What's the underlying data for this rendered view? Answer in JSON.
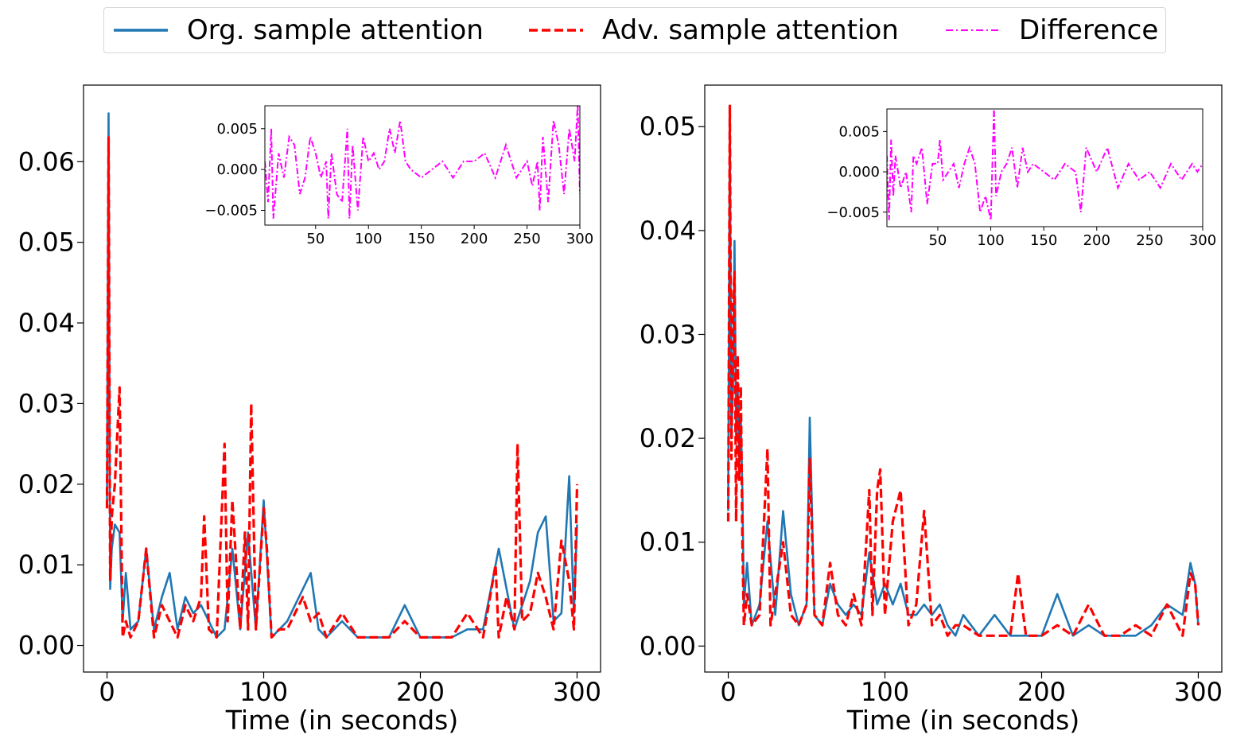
{
  "legend": {
    "org_label": "Org. sample attention",
    "adv_label": "Adv. sample attention",
    "diff_label": "Difference"
  },
  "colors": {
    "org": "#1f77b4",
    "adv": "#ff0000",
    "diff": "#ff00ff"
  },
  "chart_data": [
    {
      "type": "line",
      "xlabel": "Time (in seconds)",
      "ylabel": "",
      "xlim": [
        -15,
        315
      ],
      "ylim": [
        -0.0033,
        0.0695
      ],
      "xticks": [
        0,
        100,
        200,
        300
      ],
      "xtick_labels": [
        "0",
        "100",
        "200",
        "300"
      ],
      "yticks": [
        0.0,
        0.01,
        0.02,
        0.03,
        0.04,
        0.05,
        0.06
      ],
      "ytick_labels": [
        "0.00",
        "0.01",
        "0.02",
        "0.03",
        "0.04",
        "0.05",
        "0.06"
      ],
      "series": [
        {
          "name": "Org. sample attention",
          "style": "solid",
          "x": [
            0,
            1,
            2,
            3,
            5,
            8,
            10,
            12,
            15,
            20,
            25,
            30,
            35,
            40,
            45,
            50,
            55,
            60,
            65,
            70,
            75,
            80,
            85,
            90,
            95,
            100,
            105,
            110,
            115,
            120,
            125,
            130,
            135,
            140,
            150,
            160,
            170,
            180,
            190,
            200,
            210,
            220,
            230,
            240,
            250,
            260,
            270,
            275,
            280,
            285,
            290,
            295,
            298,
            300
          ],
          "y": [
            0.018,
            0.066,
            0.007,
            0.012,
            0.015,
            0.014,
            0.003,
            0.009,
            0.002,
            0.003,
            0.012,
            0.002,
            0.006,
            0.009,
            0.002,
            0.006,
            0.004,
            0.005,
            0.003,
            0.001,
            0.002,
            0.012,
            0.002,
            0.014,
            0.002,
            0.018,
            0.001,
            0.002,
            0.003,
            0.005,
            0.007,
            0.009,
            0.002,
            0.001,
            0.003,
            0.001,
            0.001,
            0.001,
            0.005,
            0.001,
            0.001,
            0.001,
            0.002,
            0.002,
            0.012,
            0.002,
            0.008,
            0.014,
            0.016,
            0.003,
            0.004,
            0.021,
            0.004,
            0.015
          ]
        },
        {
          "name": "Adv. sample attention",
          "style": "dashed",
          "x": [
            0,
            1,
            2,
            3,
            5,
            8,
            10,
            12,
            15,
            20,
            25,
            30,
            35,
            40,
            45,
            50,
            55,
            60,
            62,
            65,
            70,
            75,
            77,
            80,
            85,
            88,
            90,
            92,
            95,
            100,
            102,
            105,
            110,
            115,
            120,
            125,
            130,
            135,
            140,
            150,
            160,
            170,
            180,
            190,
            200,
            210,
            220,
            230,
            240,
            248,
            250,
            255,
            260,
            262,
            265,
            270,
            275,
            280,
            285,
            290,
            295,
            298,
            300
          ],
          "y": [
            0.017,
            0.063,
            0.008,
            0.016,
            0.02,
            0.032,
            0.001,
            0.003,
            0.001,
            0.003,
            0.012,
            0.001,
            0.005,
            0.003,
            0.001,
            0.005,
            0.003,
            0.006,
            0.016,
            0.002,
            0.001,
            0.025,
            0.003,
            0.018,
            0.002,
            0.014,
            0.002,
            0.03,
            0.002,
            0.017,
            0.012,
            0.001,
            0.002,
            0.002,
            0.004,
            0.006,
            0.003,
            0.004,
            0.001,
            0.004,
            0.001,
            0.001,
            0.001,
            0.003,
            0.001,
            0.001,
            0.001,
            0.004,
            0.001,
            0.01,
            0.001,
            0.006,
            0.002,
            0.025,
            0.003,
            0.004,
            0.009,
            0.006,
            0.002,
            0.013,
            0.008,
            0.002,
            0.02
          ]
        }
      ],
      "inset": {
        "series_name": "Difference",
        "style": "dashdot",
        "xlim": [
          2,
          300
        ],
        "ylim": [
          -0.0068,
          0.0078
        ],
        "xticks": [
          50,
          100,
          150,
          200,
          250,
          300
        ],
        "xtick_labels": [
          "50",
          "100",
          "150",
          "200",
          "250",
          "300"
        ],
        "yticks": [
          -0.005,
          0.0,
          0.005
        ],
        "ytick_labels": [
          "−0.005",
          "0.000",
          "0.005"
        ],
        "x": [
          2,
          5,
          8,
          10,
          15,
          20,
          25,
          30,
          35,
          40,
          45,
          50,
          55,
          60,
          62,
          65,
          70,
          75,
          80,
          82,
          85,
          90,
          95,
          100,
          105,
          110,
          115,
          120,
          125,
          130,
          135,
          140,
          150,
          160,
          170,
          180,
          190,
          200,
          210,
          220,
          230,
          240,
          250,
          255,
          260,
          262,
          265,
          270,
          275,
          280,
          285,
          290,
          295,
          298,
          300
        ],
        "y": [
          0.001,
          -0.004,
          0.005,
          -0.006,
          0.002,
          -0.001,
          0.004,
          0.003,
          -0.003,
          -0.001,
          0.004,
          0.002,
          -0.001,
          0.001,
          -0.006,
          0.002,
          -0.003,
          -0.004,
          0.005,
          -0.006,
          0.003,
          -0.005,
          0.004,
          0.001,
          0.002,
          0.0,
          0.001,
          0.005,
          0.002,
          0.006,
          0.001,
          0.0,
          -0.001,
          0.0,
          0.001,
          -0.001,
          0.001,
          0.001,
          0.002,
          -0.001,
          0.003,
          -0.001,
          0.001,
          -0.002,
          0.001,
          -0.005,
          0.004,
          -0.004,
          0.006,
          0.003,
          -0.003,
          0.005,
          0.001,
          0.008,
          -0.003
        ]
      }
    },
    {
      "type": "line",
      "xlabel": "Time (in seconds)",
      "ylabel": "",
      "xlim": [
        -15,
        315
      ],
      "ylim": [
        -0.0025,
        0.054
      ],
      "xticks": [
        0,
        100,
        200,
        300
      ],
      "xtick_labels": [
        "0",
        "100",
        "200",
        "300"
      ],
      "yticks": [
        0.0,
        0.01,
        0.02,
        0.03,
        0.04,
        0.05
      ],
      "ytick_labels": [
        "0.00",
        "0.01",
        "0.02",
        "0.03",
        "0.04",
        "0.05"
      ],
      "series": [
        {
          "name": "Org. sample attention",
          "style": "solid",
          "x": [
            0,
            1,
            2,
            3,
            4,
            5,
            6,
            7,
            8,
            9,
            10,
            12,
            15,
            20,
            25,
            30,
            35,
            40,
            45,
            50,
            52,
            55,
            60,
            65,
            70,
            75,
            80,
            85,
            90,
            95,
            100,
            105,
            110,
            115,
            120,
            125,
            130,
            135,
            140,
            145,
            150,
            160,
            170,
            180,
            190,
            200,
            210,
            220,
            230,
            240,
            250,
            260,
            270,
            280,
            290,
            295,
            298,
            300
          ],
          "y": [
            0.013,
            0.05,
            0.02,
            0.025,
            0.039,
            0.02,
            0.025,
            0.018,
            0.022,
            0.015,
            0.004,
            0.008,
            0.002,
            0.004,
            0.012,
            0.003,
            0.013,
            0.005,
            0.002,
            0.004,
            0.022,
            0.003,
            0.002,
            0.006,
            0.004,
            0.003,
            0.004,
            0.003,
            0.009,
            0.004,
            0.006,
            0.004,
            0.006,
            0.003,
            0.003,
            0.004,
            0.003,
            0.004,
            0.002,
            0.001,
            0.003,
            0.001,
            0.003,
            0.001,
            0.001,
            0.001,
            0.005,
            0.001,
            0.002,
            0.001,
            0.001,
            0.001,
            0.002,
            0.004,
            0.003,
            0.008,
            0.006,
            0.002
          ]
        },
        {
          "name": "Adv. sample attention",
          "style": "dashed",
          "x": [
            0,
            1,
            2,
            3,
            4,
            5,
            6,
            7,
            8,
            9,
            10,
            12,
            15,
            20,
            25,
            27,
            30,
            35,
            40,
            45,
            50,
            52,
            55,
            60,
            65,
            70,
            75,
            80,
            85,
            90,
            92,
            95,
            97,
            100,
            105,
            110,
            115,
            120,
            125,
            130,
            135,
            140,
            145,
            150,
            160,
            170,
            180,
            185,
            190,
            200,
            210,
            220,
            230,
            240,
            250,
            260,
            270,
            280,
            290,
            295,
            298,
            300
          ],
          "y": [
            0.012,
            0.052,
            0.018,
            0.033,
            0.036,
            0.012,
            0.028,
            0.016,
            0.025,
            0.01,
            0.002,
            0.005,
            0.002,
            0.003,
            0.019,
            0.002,
            0.005,
            0.01,
            0.003,
            0.002,
            0.004,
            0.018,
            0.003,
            0.002,
            0.008,
            0.003,
            0.002,
            0.005,
            0.002,
            0.015,
            0.003,
            0.015,
            0.017,
            0.003,
            0.012,
            0.015,
            0.002,
            0.004,
            0.013,
            0.002,
            0.003,
            0.001,
            0.002,
            0.002,
            0.001,
            0.001,
            0.001,
            0.007,
            0.001,
            0.001,
            0.002,
            0.001,
            0.004,
            0.001,
            0.001,
            0.002,
            0.001,
            0.004,
            0.001,
            0.007,
            0.006,
            0.002
          ]
        }
      ],
      "inset": {
        "series_name": "Difference",
        "style": "dashdot",
        "xlim": [
          2,
          300
        ],
        "ylim": [
          -0.0068,
          0.0078
        ],
        "xticks": [
          50,
          100,
          150,
          200,
          250,
          300
        ],
        "xtick_labels": [
          "50",
          "100",
          "150",
          "200",
          "250",
          "300"
        ],
        "yticks": [
          -0.005,
          0.0,
          0.005
        ],
        "ytick_labels": [
          "−0.005",
          "0.000",
          "0.005"
        ],
        "x": [
          2,
          4,
          6,
          8,
          10,
          15,
          20,
          25,
          27,
          30,
          35,
          40,
          45,
          50,
          52,
          55,
          60,
          65,
          70,
          75,
          80,
          85,
          90,
          95,
          100,
          103,
          105,
          110,
          115,
          120,
          125,
          130,
          135,
          140,
          150,
          160,
          170,
          180,
          185,
          190,
          200,
          210,
          220,
          230,
          240,
          250,
          260,
          270,
          280,
          290,
          295,
          300
        ],
        "y": [
          0.002,
          -0.006,
          0.004,
          -0.003,
          0.002,
          -0.002,
          0.0,
          -0.005,
          0.002,
          0.001,
          0.003,
          -0.004,
          0.001,
          0.001,
          0.004,
          -0.001,
          0.0,
          0.001,
          -0.002,
          0.001,
          0.003,
          0.001,
          -0.005,
          -0.003,
          -0.006,
          0.008,
          -0.003,
          0.0,
          0.001,
          0.003,
          -0.002,
          0.003,
          0.0,
          0.001,
          0.0,
          -0.001,
          0.001,
          0.0,
          -0.005,
          0.003,
          0.0,
          0.003,
          -0.002,
          0.001,
          -0.001,
          0.0,
          -0.002,
          0.001,
          -0.001,
          0.001,
          0.0,
          0.001
        ]
      }
    }
  ]
}
